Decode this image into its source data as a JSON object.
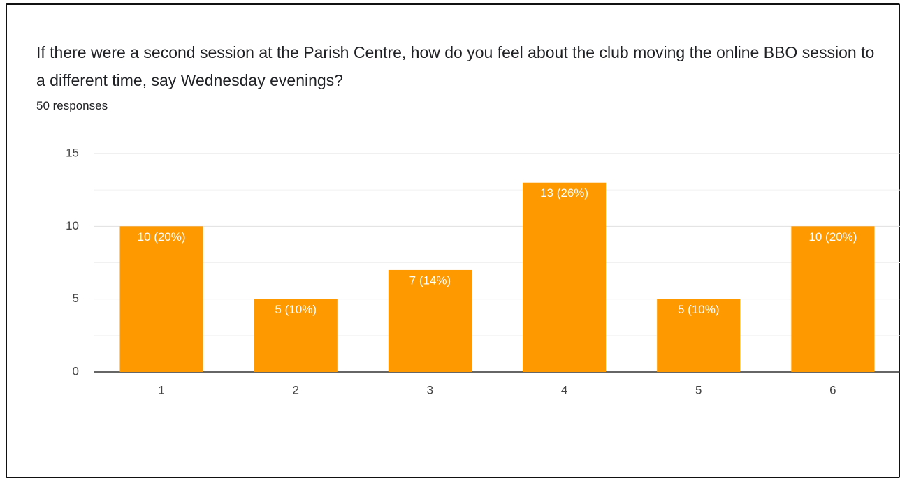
{
  "chart_data": {
    "type": "bar",
    "title": "If there were a second session at the Parish Centre, how do you feel about the club moving the online BBO session to a different time, say Wednesday evenings?",
    "subtitle": "50 responses",
    "categories": [
      "1",
      "2",
      "3",
      "4",
      "5",
      "6"
    ],
    "values": [
      10,
      5,
      7,
      13,
      5,
      10
    ],
    "value_labels": [
      "10 (20%)",
      "5 (10%)",
      "7 (14%)",
      "13 (26%)",
      "5 (10%)",
      "10 (20%)"
    ],
    "color": "#ff9900",
    "ylim": [
      0,
      15
    ],
    "yticks": [
      0,
      5,
      10,
      15
    ],
    "grid": true,
    "minor_grid": true
  }
}
